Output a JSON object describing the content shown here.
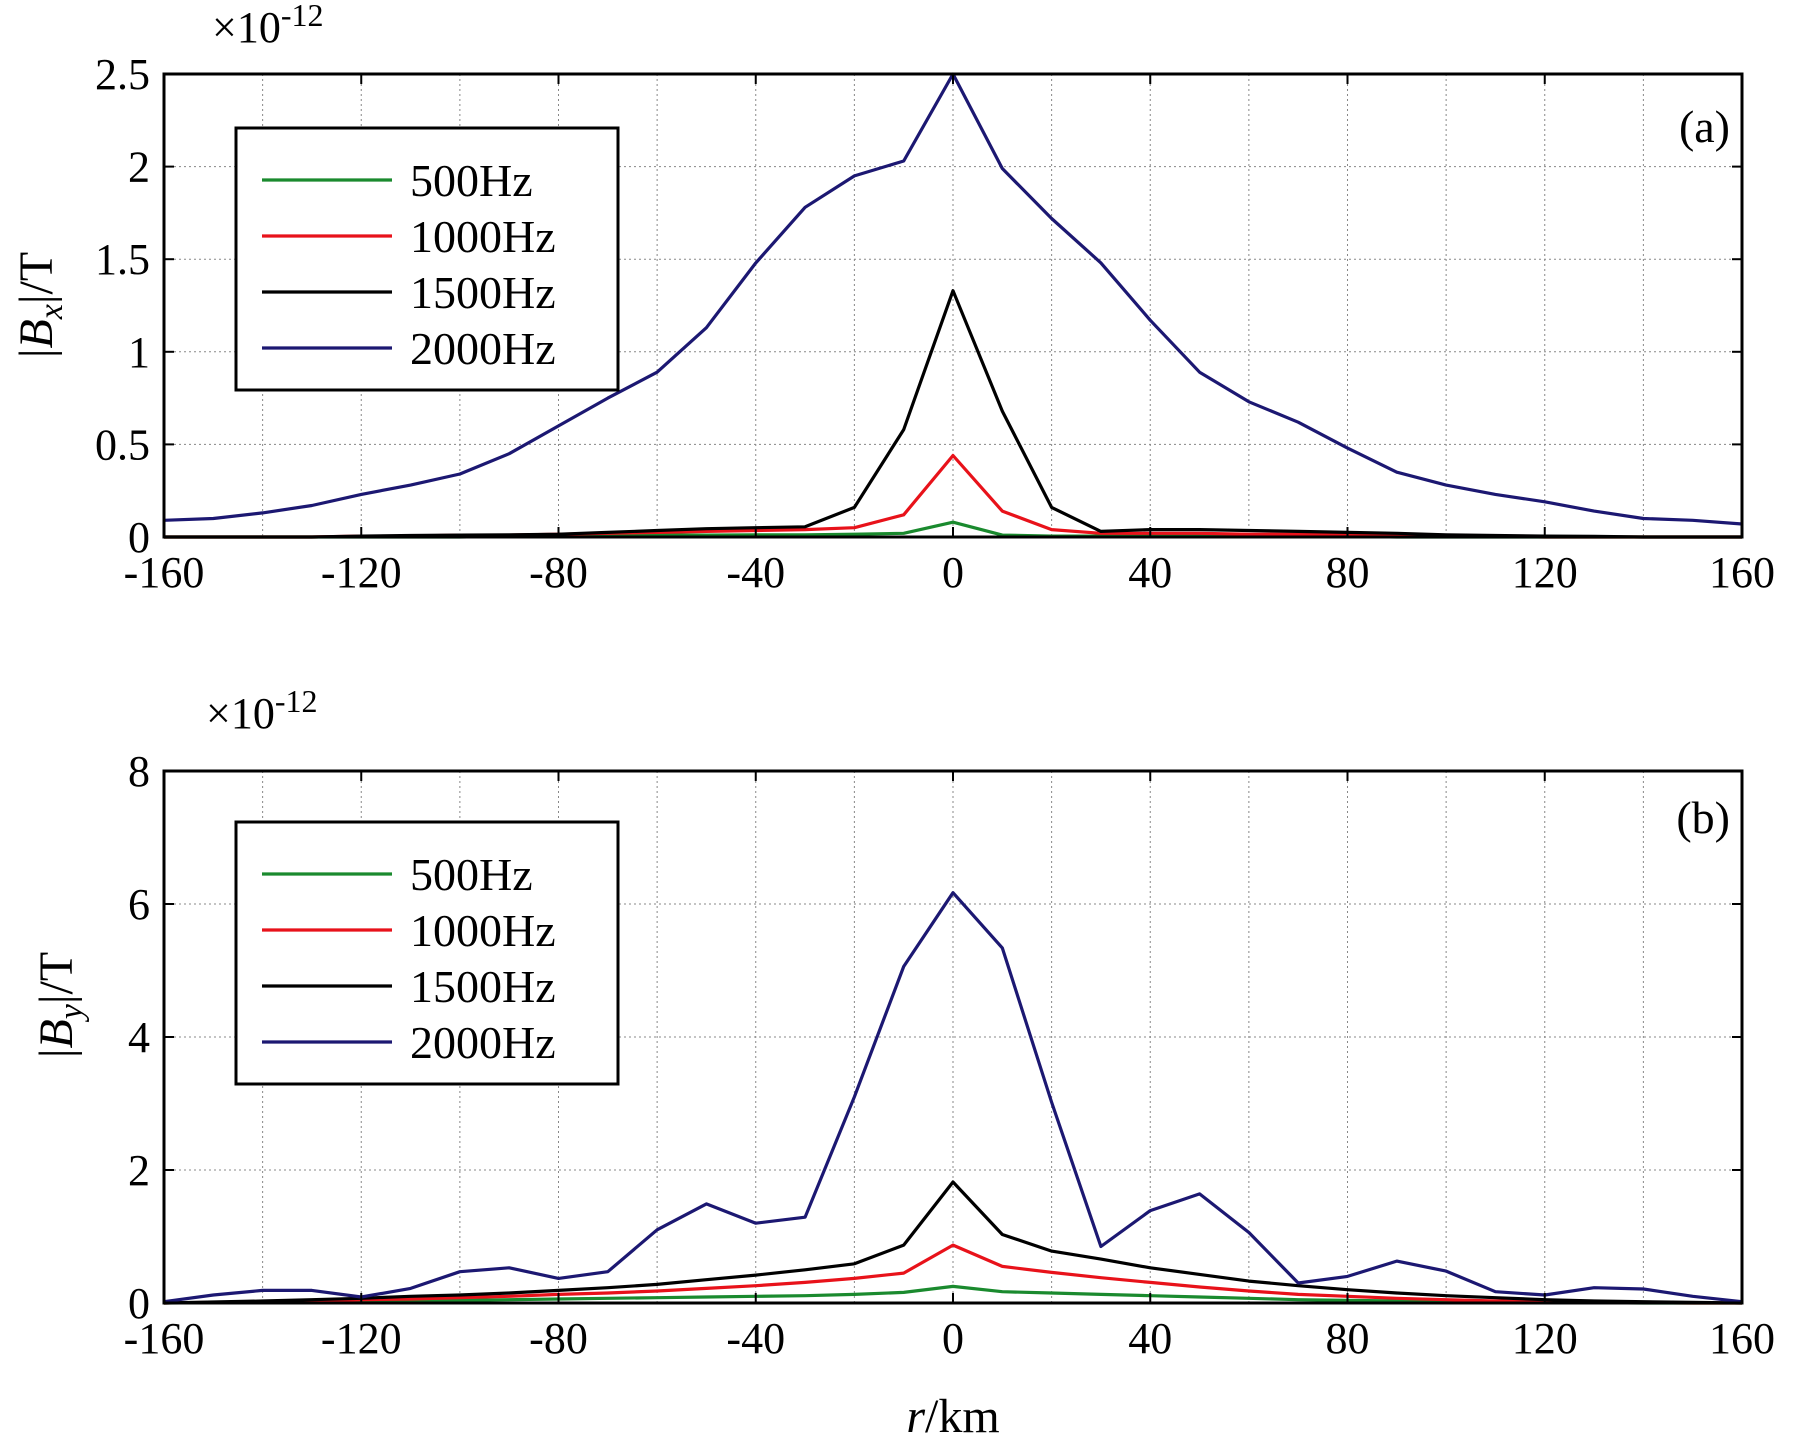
{
  "chart_data": [
    {
      "type": "line",
      "panel_label": "(a)",
      "ylabel": {
        "prefix": "|",
        "symbol": "B",
        "subscript": "x",
        "suffix": "|/T"
      },
      "y_exponent": {
        "base": "×10",
        "power": "-12"
      },
      "xlim": [
        -160,
        160
      ],
      "ylim": [
        0,
        2.5
      ],
      "x_ticks": [
        "-160",
        "-120",
        "-80",
        "-40",
        "0",
        "40",
        "80",
        "120",
        "160"
      ],
      "y_ticks": [
        "0",
        "0.5",
        "1",
        "1.5",
        "2",
        "2.5"
      ],
      "grid": true,
      "legend_position": "top-left",
      "x": [
        -160,
        -150,
        -140,
        -130,
        -120,
        -110,
        -100,
        -90,
        -80,
        -70,
        -60,
        -50,
        -40,
        -30,
        -20,
        -10,
        0,
        10,
        20,
        30,
        40,
        50,
        60,
        70,
        80,
        90,
        100,
        110,
        120,
        130,
        140,
        150,
        160
      ],
      "series": [
        {
          "name": "500Hz",
          "color": "#1a8a2e",
          "values": [
            0,
            0,
            0,
            0,
            0,
            0,
            0,
            0.005,
            0.005,
            0.008,
            0.01,
            0.01,
            0.012,
            0.012,
            0.015,
            0.02,
            0.08,
            0.01,
            0.005,
            0.005,
            0.005,
            0.005,
            0.005,
            0.005,
            0.005,
            0,
            0,
            0,
            0,
            0,
            0,
            0,
            0
          ]
        },
        {
          "name": "1000Hz",
          "color": "#e8121a",
          "values": [
            0,
            0,
            0,
            0,
            0.005,
            0.005,
            0.01,
            0.01,
            0.015,
            0.02,
            0.025,
            0.03,
            0.035,
            0.04,
            0.05,
            0.12,
            0.44,
            0.14,
            0.04,
            0.02,
            0.02,
            0.02,
            0.015,
            0.015,
            0.01,
            0.01,
            0.005,
            0.005,
            0,
            0,
            0,
            0,
            0
          ]
        },
        {
          "name": "1500Hz",
          "color": "#000000",
          "values": [
            0,
            0,
            0,
            0,
            0.005,
            0.008,
            0.01,
            0.012,
            0.015,
            0.025,
            0.035,
            0.045,
            0.05,
            0.055,
            0.16,
            0.58,
            1.33,
            0.68,
            0.16,
            0.03,
            0.04,
            0.04,
            0.035,
            0.03,
            0.025,
            0.02,
            0.012,
            0.008,
            0.005,
            0.003,
            0,
            0,
            0
          ]
        },
        {
          "name": "2000Hz",
          "color": "#1c1872",
          "values": [
            0.09,
            0.1,
            0.13,
            0.17,
            0.23,
            0.28,
            0.34,
            0.45,
            0.6,
            0.75,
            0.89,
            1.13,
            1.48,
            1.78,
            1.95,
            2.03,
            2.5,
            1.99,
            1.72,
            1.48,
            1.17,
            0.89,
            0.73,
            0.62,
            0.48,
            0.35,
            0.28,
            0.23,
            0.19,
            0.14,
            0.1,
            0.09,
            0.07
          ]
        }
      ]
    },
    {
      "type": "line",
      "panel_label": "(b)",
      "ylabel": {
        "prefix": "|",
        "symbol": "B",
        "subscript": "y",
        "suffix": "|/T"
      },
      "y_exponent": {
        "base": "×10",
        "power": "-12"
      },
      "xlabel": {
        "symbol": "r",
        "suffix": "/km"
      },
      "xlim": [
        -160,
        160
      ],
      "ylim": [
        0,
        8
      ],
      "x_ticks": [
        "-160",
        "-120",
        "-80",
        "-40",
        "0",
        "40",
        "80",
        "120",
        "160"
      ],
      "y_ticks": [
        "0",
        "2",
        "4",
        "6",
        "8"
      ],
      "grid": true,
      "legend_position": "top-left",
      "x": [
        -160,
        -150,
        -140,
        -130,
        -120,
        -110,
        -100,
        -90,
        -80,
        -70,
        -60,
        -50,
        -40,
        -30,
        -20,
        -10,
        0,
        10,
        20,
        30,
        40,
        50,
        60,
        70,
        80,
        90,
        100,
        110,
        120,
        130,
        140,
        150,
        160
      ],
      "series": [
        {
          "name": "500Hz",
          "color": "#1a8a2e",
          "values": [
            0,
            0.005,
            0.01,
            0.015,
            0.02,
            0.03,
            0.04,
            0.05,
            0.06,
            0.07,
            0.08,
            0.09,
            0.1,
            0.11,
            0.13,
            0.16,
            0.25,
            0.17,
            0.15,
            0.13,
            0.11,
            0.09,
            0.07,
            0.05,
            0.04,
            0.03,
            0.02,
            0.015,
            0.01,
            0.005,
            0,
            0,
            0
          ]
        },
        {
          "name": "1000Hz",
          "color": "#e8121a",
          "values": [
            0,
            0.01,
            0.02,
            0.03,
            0.05,
            0.06,
            0.08,
            0.1,
            0.13,
            0.15,
            0.18,
            0.22,
            0.26,
            0.31,
            0.37,
            0.45,
            0.87,
            0.55,
            0.46,
            0.38,
            0.31,
            0.24,
            0.18,
            0.13,
            0.1,
            0.07,
            0.05,
            0.03,
            0.02,
            0.01,
            0.005,
            0,
            0
          ]
        },
        {
          "name": "1500Hz",
          "color": "#000000",
          "values": [
            0,
            0.015,
            0.03,
            0.05,
            0.07,
            0.1,
            0.12,
            0.15,
            0.19,
            0.23,
            0.28,
            0.35,
            0.42,
            0.5,
            0.59,
            0.87,
            1.82,
            1.03,
            0.78,
            0.66,
            0.53,
            0.43,
            0.33,
            0.26,
            0.2,
            0.15,
            0.11,
            0.08,
            0.05,
            0.03,
            0.02,
            0.01,
            0
          ]
        },
        {
          "name": "2000Hz",
          "color": "#1c1872",
          "values": [
            0.02,
            0.12,
            0.19,
            0.19,
            0.09,
            0.22,
            0.47,
            0.53,
            0.37,
            0.47,
            1.1,
            1.49,
            1.2,
            1.29,
            3.1,
            5.06,
            6.17,
            5.34,
            3.02,
            0.85,
            1.39,
            1.64,
            1.06,
            0.3,
            0.4,
            0.63,
            0.48,
            0.17,
            0.12,
            0.23,
            0.21,
            0.1,
            0.02
          ]
        }
      ]
    }
  ]
}
